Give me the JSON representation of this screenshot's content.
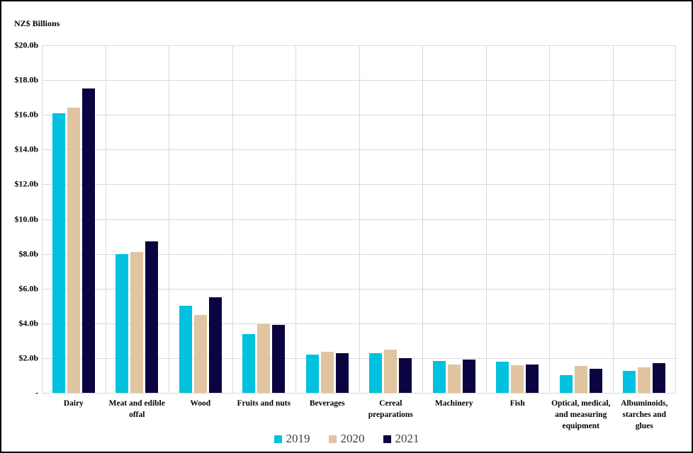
{
  "title": "NZ$ Billions",
  "colors": {
    "series_2019": "#00C1DE",
    "series_2020": "#E0C5A0",
    "series_2021": "#0A0440",
    "gridline": "#D9D9D9",
    "axis_text": "#000000",
    "legend_text": "#3f3f3f",
    "background": "#FFFFFF",
    "border": "#000000"
  },
  "chart_data": {
    "type": "bar",
    "title": "NZ$ Billions",
    "xlabel": "",
    "ylabel": "NZ$ Billions",
    "ylim": [
      0,
      20
    ],
    "ytick_step": 2,
    "grid": true,
    "legend_position": "bottom",
    "ytick_labels_bottom_to_top": [
      "-",
      "$2.0b",
      "$4.0b",
      "$6.0b",
      "$8.0b",
      "$10.0b",
      "$12.0b",
      "$14.0b",
      "$16.0b",
      "$18.0b",
      "$20.0b"
    ],
    "categories": [
      "Dairy",
      "Meat and edible offal",
      "Wood",
      "Fruits and nuts",
      "Beverages",
      "Cereal preparations",
      "Machinery",
      "Fish",
      "Optical, medical, and measuring equipment",
      "Albuminoids, starches and glues"
    ],
    "series": [
      {
        "name": "2019",
        "color": "#00C1DE",
        "values": [
          16.1,
          8.0,
          5.0,
          3.4,
          2.2,
          2.3,
          1.85,
          1.8,
          1.0,
          1.25
        ]
      },
      {
        "name": "2020",
        "color": "#E0C5A0",
        "values": [
          16.4,
          8.1,
          4.5,
          3.95,
          2.35,
          2.5,
          1.65,
          1.6,
          1.55,
          1.45
        ]
      },
      {
        "name": "2021",
        "color": "#0A0440",
        "values": [
          17.5,
          8.7,
          5.5,
          3.9,
          2.3,
          2.0,
          1.9,
          1.65,
          1.4,
          1.7
        ]
      }
    ]
  }
}
